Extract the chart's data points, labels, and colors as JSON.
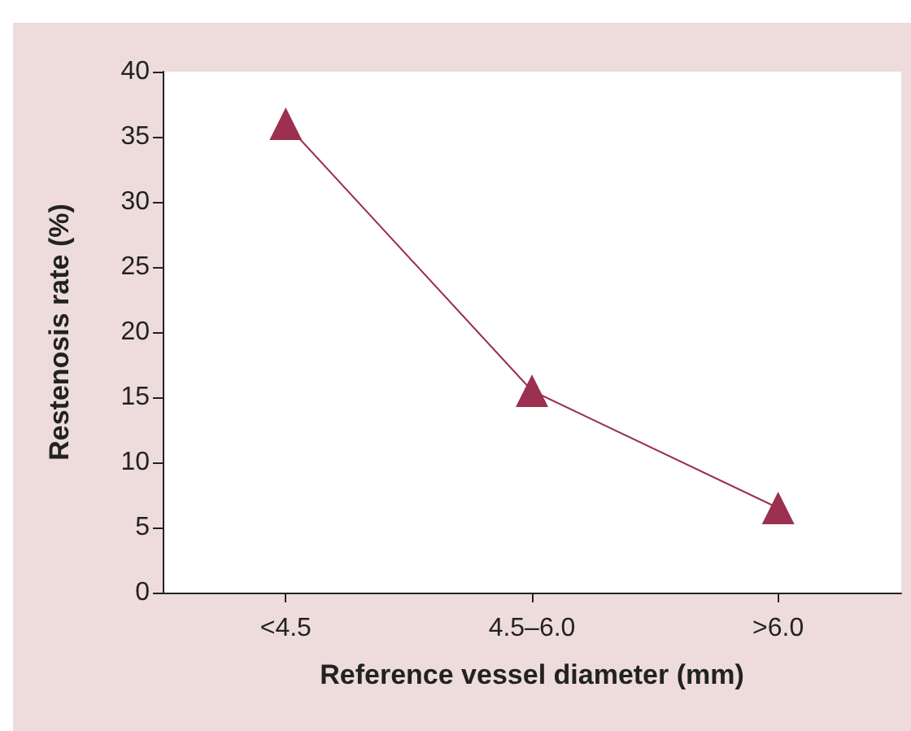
{
  "chart_data": {
    "type": "line",
    "xlabel": "Reference vessel diameter (mm)",
    "ylabel": "Restenosis rate (%)",
    "categories": [
      "<4.5",
      "4.5–6.0",
      ">6.0"
    ],
    "series": [
      {
        "color": "#9b3050",
        "values": [
          36,
          15.5,
          6.5
        ]
      }
    ],
    "ylim": [
      0,
      40
    ],
    "yticks": [
      0,
      5,
      10,
      15,
      20,
      25,
      30,
      35,
      40
    ],
    "marker": "triangle",
    "line_style": "solid"
  }
}
